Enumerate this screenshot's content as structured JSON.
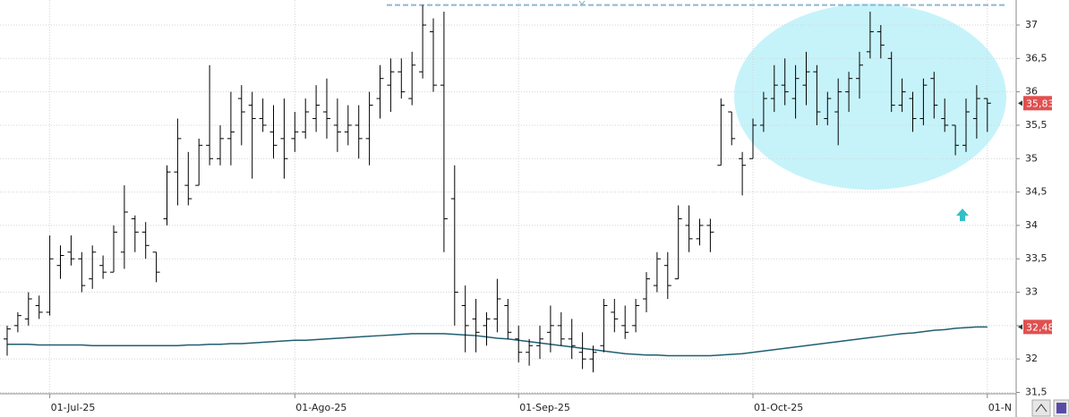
{
  "chart_data": {
    "type": "ohlc",
    "categories": [
      null,
      null,
      null,
      null,
      "01-Jul-25",
      null,
      null,
      null,
      null,
      null,
      null,
      null,
      null,
      null,
      null,
      null,
      null,
      null,
      null,
      null,
      null,
      null,
      null,
      null,
      null,
      null,
      null,
      "01-Ago-25",
      null,
      null,
      null,
      null,
      null,
      null,
      null,
      null,
      null,
      null,
      null,
      null,
      null,
      null,
      null,
      null,
      null,
      null,
      null,
      null,
      "01-Sep-25",
      null,
      null,
      null,
      null,
      null,
      null,
      null,
      null,
      null,
      null,
      null,
      null,
      null,
      null,
      null,
      null,
      null,
      null,
      null,
      null,
      null,
      "01-Oct-25",
      null,
      null,
      null,
      null,
      null,
      null,
      null,
      null,
      null,
      null,
      null,
      null,
      null,
      null,
      null,
      null,
      null,
      null,
      null,
      null,
      null,
      "01-N"
    ],
    "open": [
      32.3,
      32.5,
      32.6,
      32.8,
      32.7,
      33.4,
      33.6,
      33.5,
      33.2,
      33.4,
      33.3,
      33.6,
      34.1,
      33.9,
      33.6,
      34.1,
      34.8,
      34.6,
      34.6,
      35.2,
      35.0,
      35.3,
      35.9,
      35.8,
      35.6,
      35.4,
      35.3,
      35.3,
      35.4,
      35.6,
      35.7,
      35.5,
      35.4,
      35.5,
      35.3,
      35.9,
      36.1,
      36.3,
      35.9,
      36.3,
      36.9,
      36.1,
      34.4,
      32.8,
      32.6,
      32.5,
      32.6,
      32.8,
      32.3,
      32.1,
      32.2,
      32.4,
      32.5,
      32.3,
      32.1,
      32.0,
      32.2,
      32.7,
      32.5,
      32.5,
      32.9,
      33.1,
      33.4,
      33.2,
      34.0,
      33.8,
      34.0,
      34.9,
      35.7,
      35.0,
      35.0,
      35.5,
      35.9,
      36.1,
      35.9,
      36.1,
      36.3,
      35.6,
      35.7,
      36.0,
      36.2,
      36.6,
      36.9,
      36.5,
      35.8,
      35.9,
      35.6,
      36.2,
      35.6,
      35.5,
      35.2,
      35.6,
      35.9
    ],
    "high": [
      32.5,
      32.7,
      33.0,
      32.95,
      33.85,
      33.7,
      33.85,
      33.6,
      33.7,
      33.55,
      34.0,
      34.6,
      34.15,
      34.05,
      33.6,
      34.9,
      35.6,
      35.1,
      35.3,
      36.4,
      35.5,
      36.0,
      36.1,
      36.0,
      35.9,
      35.8,
      35.9,
      35.7,
      35.9,
      36.1,
      36.2,
      35.9,
      35.8,
      35.8,
      36.0,
      36.4,
      36.5,
      36.5,
      36.6,
      37.3,
      37.1,
      37.2,
      34.9,
      33.1,
      32.9,
      32.7,
      33.2,
      32.9,
      32.5,
      32.3,
      32.5,
      32.8,
      32.7,
      32.6,
      32.4,
      32.2,
      32.9,
      32.9,
      32.8,
      32.9,
      33.3,
      33.6,
      33.6,
      34.3,
      34.3,
      34.1,
      34.1,
      35.9,
      35.7,
      35.1,
      35.6,
      36.0,
      36.4,
      36.5,
      36.4,
      36.6,
      36.4,
      36.0,
      36.2,
      36.3,
      36.6,
      37.2,
      37.0,
      36.6,
      36.2,
      36.0,
      36.2,
      36.3,
      35.9,
      35.5,
      35.9,
      36.1,
      35.9
    ],
    "low": [
      32.05,
      32.4,
      32.5,
      32.6,
      32.65,
      33.2,
      33.4,
      33.0,
      33.05,
      33.2,
      33.3,
      33.35,
      33.6,
      33.5,
      33.15,
      34.0,
      34.3,
      34.3,
      34.6,
      34.9,
      34.9,
      34.9,
      35.2,
      34.7,
      35.4,
      35.0,
      34.7,
      35.1,
      35.3,
      35.4,
      35.3,
      35.1,
      35.2,
      35.0,
      34.9,
      35.6,
      35.7,
      35.9,
      35.8,
      36.2,
      36.0,
      33.6,
      32.5,
      32.1,
      32.1,
      32.2,
      32.4,
      32.3,
      31.95,
      31.9,
      32.0,
      32.1,
      32.2,
      32.0,
      31.85,
      31.8,
      32.1,
      32.4,
      32.3,
      32.4,
      32.7,
      33.0,
      32.9,
      33.2,
      33.6,
      33.7,
      33.6,
      34.9,
      35.2,
      34.45,
      35.0,
      35.4,
      35.7,
      35.8,
      35.6,
      35.8,
      35.5,
      35.5,
      35.2,
      35.7,
      35.9,
      36.5,
      36.5,
      35.7,
      35.7,
      35.4,
      35.5,
      35.6,
      35.4,
      35.05,
      35.1,
      35.3,
      35.4
    ],
    "close": [
      32.45,
      32.65,
      32.9,
      32.7,
      33.5,
      33.55,
      33.5,
      33.1,
      33.6,
      33.3,
      33.9,
      34.2,
      33.9,
      33.7,
      33.3,
      34.8,
      35.3,
      34.4,
      35.2,
      35.0,
      35.3,
      35.4,
      35.7,
      35.6,
      35.5,
      35.2,
      35.0,
      35.4,
      35.7,
      35.8,
      35.6,
      35.4,
      35.5,
      35.3,
      35.8,
      36.2,
      36.3,
      36.0,
      36.4,
      37.0,
      36.1,
      34.1,
      33.0,
      32.5,
      32.4,
      32.6,
      32.9,
      32.4,
      32.1,
      32.2,
      32.3,
      32.5,
      32.3,
      32.2,
      32.0,
      32.1,
      32.8,
      32.6,
      32.4,
      32.8,
      33.2,
      33.5,
      33.1,
      34.1,
      33.8,
      34.0,
      33.9,
      35.8,
      35.3,
      34.9,
      35.5,
      35.9,
      36.1,
      36.0,
      36.2,
      36.3,
      35.7,
      35.9,
      36.0,
      36.2,
      36.4,
      36.9,
      36.7,
      35.8,
      36.0,
      35.6,
      36.1,
      35.8,
      35.5,
      35.2,
      35.7,
      35.9,
      35.83
    ],
    "color": "#000000",
    "last_label": {
      "value": 35.83,
      "label": "35,83"
    },
    "overlay": {
      "color": "#1f5f70",
      "values": [
        32.22,
        32.22,
        32.22,
        32.21,
        32.21,
        32.21,
        32.21,
        32.21,
        32.2,
        32.2,
        32.2,
        32.2,
        32.2,
        32.2,
        32.2,
        32.2,
        32.2,
        32.21,
        32.21,
        32.22,
        32.22,
        32.23,
        32.23,
        32.24,
        32.25,
        32.26,
        32.27,
        32.28,
        32.28,
        32.29,
        32.3,
        32.31,
        32.32,
        32.33,
        32.34,
        32.35,
        32.36,
        32.37,
        32.38,
        32.38,
        32.38,
        32.38,
        32.37,
        32.36,
        32.35,
        32.33,
        32.31,
        32.3,
        32.28,
        32.26,
        32.24,
        32.22,
        32.2,
        32.18,
        32.16,
        32.14,
        32.12,
        32.1,
        32.08,
        32.07,
        32.06,
        32.06,
        32.05,
        32.05,
        32.05,
        32.05,
        32.05,
        32.06,
        32.07,
        32.08,
        32.1,
        32.12,
        32.14,
        32.16,
        32.18,
        32.2,
        32.22,
        32.24,
        32.26,
        32.28,
        32.3,
        32.32,
        32.34,
        32.36,
        32.38,
        32.39,
        32.41,
        32.43,
        32.44,
        32.46,
        32.47,
        32.48,
        32.48
      ],
      "last_label": {
        "value": 32.48,
        "label": "32,48"
      }
    },
    "hline": 37.3,
    "ylim": [
      31.48,
      37.375
    ],
    "yticks": [
      {
        "value": 31.5,
        "label": "31,5"
      },
      32,
      {
        "value": 32.5,
        "label": "32,5"
      },
      33,
      {
        "value": 33.5,
        "label": "33,5"
      },
      34,
      {
        "value": 34.5,
        "label": "34,5"
      },
      35,
      {
        "value": 35.5,
        "label": "35,5"
      },
      36,
      {
        "value": 36.5,
        "label": "36,5"
      },
      37
    ],
    "grid": true
  }
}
